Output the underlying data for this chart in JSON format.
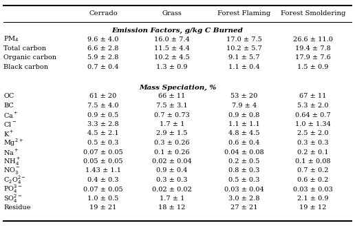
{
  "columns": [
    "",
    "Cerrado",
    "Grass",
    "Forest Flaming",
    "Forest Smoldering"
  ],
  "section1_header": "Emission Factors, g/kg C Burned",
  "section2_header": "Mass Speciation, %",
  "section1_rows": [
    [
      "PM$_4$",
      "9.6 ± 4.0",
      "16.0 ± 7.4",
      "17.0 ± 7.5",
      "26.6 ± 11.0"
    ],
    [
      "Total carbon",
      "6.6 ± 2.8",
      "11.5 ± 4.4",
      "10.2 ± 5.7",
      "19.4 ± 7.8"
    ],
    [
      "Organic carbon",
      "5.9 ± 2.8",
      "10.2 ± 4.5",
      "9.1 ± 5.7",
      "17.9 ± 7.6"
    ],
    [
      "Black carbon",
      "0.7 ± 0.4",
      "1.3 ± 0.9",
      "1.1 ± 0.4",
      "1.5 ± 0.9"
    ]
  ],
  "section2_rows": [
    [
      "OC",
      "61 ± 20",
      "66 ± 11",
      "53 ± 20",
      "67 ± 11"
    ],
    [
      "BC",
      "7.5 ± 4.0",
      "7.5 ± 3.1",
      "7.9 ± 4",
      "5.3 ± 2.0"
    ],
    [
      "Ca$^+$",
      "0.9 ± 0.5",
      "0.7 ± 0.73",
      "0.9 ± 0.8",
      "0.64 ± 0.7"
    ],
    [
      "Cl$^-$",
      "3.3 ± 2.8",
      "1.7 ± 1",
      "1.1 ± 1.1",
      "1.0 ± 1.34"
    ],
    [
      "K$^+$",
      "4.5 ± 2.1",
      "2.9 ± 1.5",
      "4.8 ± 4.5",
      "2.5 ± 2.0"
    ],
    [
      "Mg$^{2+}$",
      "0.5 ± 0.3",
      "0.3 ± 0.26",
      "0.6 ± 0.4",
      "0.3 ± 0.3"
    ],
    [
      "Na$^+$",
      "0.07 ± 0.05",
      "0.1 ± 0.26",
      "0.04 ± 0.08",
      "0.2 ± 0.1"
    ],
    [
      "NH$_4^+$",
      "0.05 ± 0.05",
      "0.02 ± 0.04",
      "0.2 ± 0.5",
      "0.1 ± 0.08"
    ],
    [
      "NO$_3^-$",
      "1.43 ± 1.1",
      "0.9 ± 0.4",
      "0.8 ± 0.3",
      "0.7 ± 0.2"
    ],
    [
      "C$_2$O$_4^{2-}$",
      "0.4 ± 0.3",
      "0.3 ± 0.3",
      "0.5 ± 0.3",
      "0.6 ± 0.2"
    ],
    [
      "PO$_4^{3-}$",
      "0.07 ± 0.05",
      "0.02 ± 0.02",
      "0.03 ± 0.04",
      "0.03 ± 0.03"
    ],
    [
      "SO$_4^{2-}$",
      "1.0 ± 0.5",
      "1.7 ± 1",
      "3.0 ± 2.8",
      "2.1 ± 0.9"
    ],
    [
      "Residue",
      "19 ± 21",
      "18 ± 12",
      "27 ± 21",
      "19 ± 12"
    ]
  ],
  "bg_color": "#ffffff",
  "text_color": "#000000",
  "font_size": 7.0,
  "header_font_size": 7.2,
  "section_header_font_size": 7.5
}
